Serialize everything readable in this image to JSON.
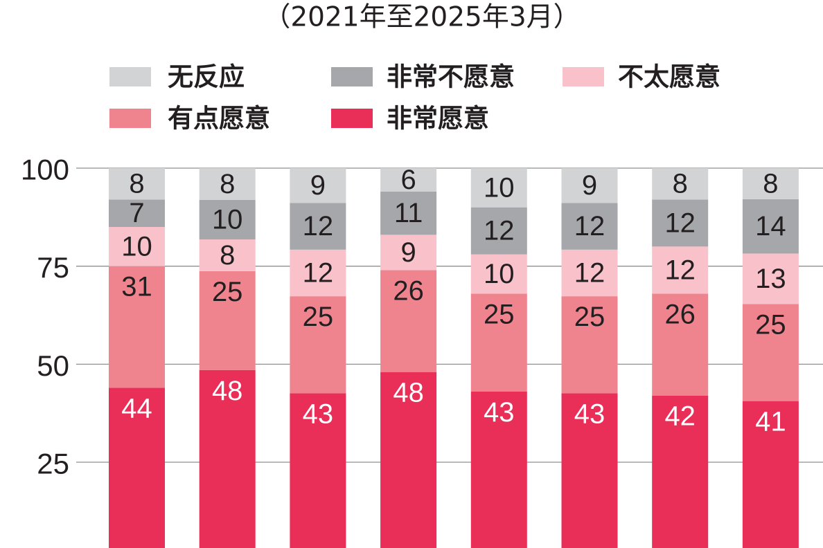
{
  "chart_data": {
    "type": "bar",
    "stacked": true,
    "subtitle": "（2021年至2025年3月）",
    "ylim": [
      0,
      100
    ],
    "yticks": [
      100,
      75,
      50,
      25
    ],
    "grid": true,
    "legend_position": "top",
    "series": [
      {
        "name": "非常愿意",
        "color": "#e92e58",
        "values": [
          44,
          48,
          43,
          48,
          43,
          43,
          42,
          41
        ]
      },
      {
        "name": "有点愿意",
        "color": "#f0848e",
        "values": [
          31,
          25,
          25,
          26,
          25,
          25,
          26,
          25
        ]
      },
      {
        "name": "不太愿意",
        "color": "#f9c1c9",
        "values": [
          10,
          8,
          12,
          9,
          10,
          12,
          12,
          13
        ]
      },
      {
        "name": "非常不愿意",
        "color": "#a6a7aa",
        "values": [
          7,
          10,
          12,
          11,
          12,
          12,
          12,
          14
        ]
      },
      {
        "name": "无反应",
        "color": "#d2d3d5",
        "values": [
          8,
          8,
          9,
          6,
          10,
          9,
          8,
          8
        ]
      }
    ]
  }
}
